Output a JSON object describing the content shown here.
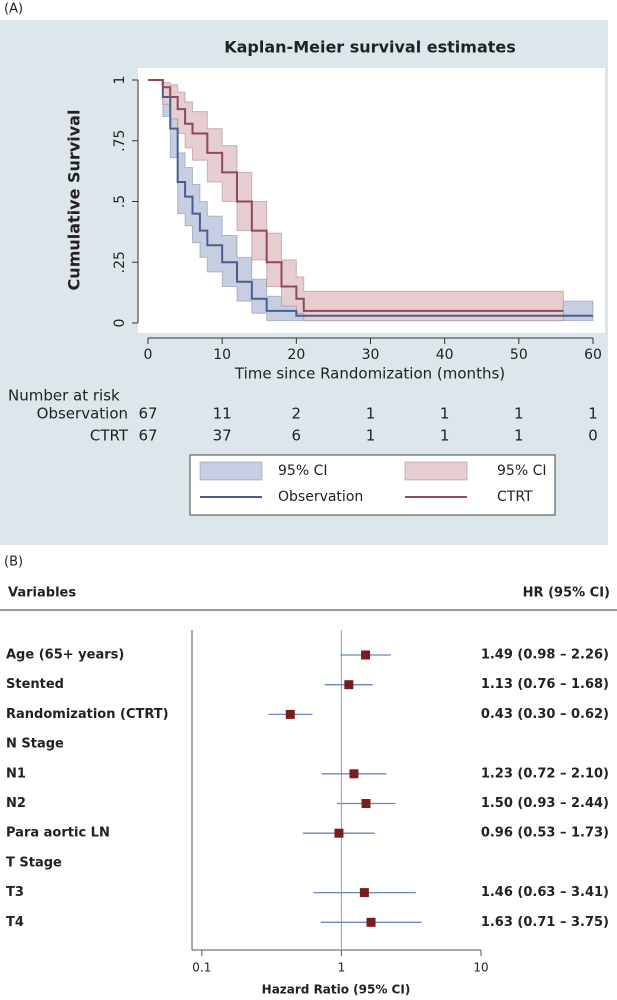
{
  "chart_data": [
    {
      "type": "step",
      "label": "(A)",
      "title": "Kaplan-Meier survival estimates",
      "ylabel": "Cumulative Survival",
      "xlabel": "Time since Randomization (months)",
      "xlim": [
        0,
        60
      ],
      "xticks": [
        0,
        10,
        20,
        30,
        40,
        50,
        60
      ],
      "ylim": [
        0,
        1
      ],
      "yticks": [
        0,
        {
          "value": 0.25,
          "label": ".25"
        },
        {
          "value": 0.5,
          "label": ".5"
        },
        {
          "value": 0.75,
          "label": ".75"
        },
        1
      ],
      "series": [
        {
          "name": "Observation",
          "color": "#4a5f8e",
          "ci_name": "95% CI",
          "ci_color": "#c7cee2",
          "x": [
            0,
            2,
            3,
            4,
            5,
            6,
            7,
            8,
            10,
            12,
            14,
            16,
            20,
            60
          ],
          "values": [
            1,
            0.93,
            0.8,
            0.58,
            0.52,
            0.45,
            0.38,
            0.32,
            0.25,
            0.17,
            0.1,
            0.05,
            0.03,
            0.03
          ],
          "ci_lower": [
            1,
            0.85,
            0.68,
            0.45,
            0.4,
            0.33,
            0.27,
            0.21,
            0.15,
            0.09,
            0.04,
            0.01,
            0.01,
            0.01
          ],
          "ci_upper": [
            1,
            0.97,
            0.88,
            0.7,
            0.64,
            0.57,
            0.5,
            0.44,
            0.36,
            0.27,
            0.18,
            0.11,
            0.09,
            0.09
          ]
        },
        {
          "name": "CTRT",
          "color": "#8c4a5a",
          "ci_name": "95% CI",
          "ci_color": "#e6cdd0",
          "x": [
            0,
            2,
            3,
            4,
            5,
            6,
            8,
            10,
            12,
            14,
            16,
            18,
            20,
            21,
            56
          ],
          "values": [
            1,
            0.97,
            0.93,
            0.88,
            0.82,
            0.78,
            0.7,
            0.62,
            0.5,
            0.38,
            0.25,
            0.15,
            0.1,
            0.05,
            0.05
          ],
          "ci_lower": [
            1,
            0.9,
            0.84,
            0.78,
            0.72,
            0.67,
            0.58,
            0.5,
            0.38,
            0.26,
            0.15,
            0.07,
            0.04,
            0.01,
            0.01
          ],
          "ci_upper": [
            1,
            0.99,
            0.98,
            0.95,
            0.91,
            0.87,
            0.8,
            0.73,
            0.62,
            0.5,
            0.37,
            0.26,
            0.19,
            0.13,
            0.13
          ]
        }
      ],
      "risk_table": {
        "title": "Number at risk",
        "rows": [
          {
            "name": "Observation",
            "values": [
              67,
              11,
              2,
              1,
              1,
              1,
              1
            ]
          },
          {
            "name": "CTRT",
            "values": [
              67,
              37,
              6,
              1,
              1,
              1,
              0
            ]
          }
        ]
      }
    },
    {
      "type": "forest",
      "label": "(B)",
      "column_header": "Variables",
      "value_header": "HR (95% CI)",
      "xlabel": "Hazard Ratio (95% CI)",
      "log_scale": true,
      "xlim": [
        0.085,
        10
      ],
      "xticks": [
        0.1,
        1,
        10
      ],
      "reference_line": 1,
      "color": "#7a1c1c",
      "ci_color": "#6a86c8",
      "categories": [
        "Age (65+ years)",
        "Stented",
        "Randomization (CTRT)",
        "N Stage",
        "N1",
        "N2",
        "Para aortic LN",
        "T Stage",
        "T3",
        "T4"
      ],
      "values": [
        1.49,
        1.13,
        0.43,
        null,
        1.23,
        1.5,
        0.96,
        null,
        1.46,
        1.63
      ],
      "ci_lower": [
        0.98,
        0.76,
        0.3,
        null,
        0.72,
        0.93,
        0.53,
        null,
        0.63,
        0.71
      ],
      "ci_upper": [
        2.26,
        1.68,
        0.62,
        null,
        2.1,
        2.44,
        1.73,
        null,
        3.41,
        3.75
      ],
      "value_labels": [
        "1.49 (0.98 – 2.26)",
        "1.13 (0.76 – 1.68)",
        "0.43 (0.30 – 0.62)",
        null,
        "1.23 (0.72 – 2.10)",
        "1.50 (0.93 – 2.44)",
        "0.96 (0.53 – 1.73)",
        null,
        "1.46 (0.63 – 3.41)",
        "1.63 (0.71 – 3.75)"
      ]
    }
  ]
}
